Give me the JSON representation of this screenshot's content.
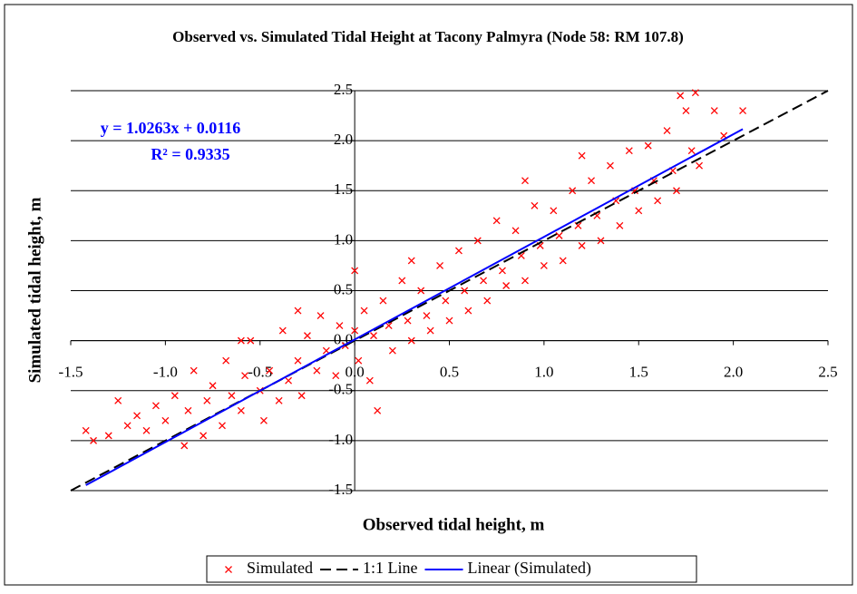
{
  "chart_data": {
    "type": "scatter",
    "title": "Observed vs. Simulated Tidal Height at Tacony Palmyra (Node 58: RM 107.8)",
    "x_label": "Observed tidal height, m",
    "y_label": "Simulated tidal height, m",
    "annotations": [
      "y = 1.0263x + 0.0116",
      "R² = 0.9335"
    ],
    "xlim": [
      -1.5,
      2.5
    ],
    "ylim": [
      -1.5,
      2.5
    ],
    "xticks": [
      -1.5,
      {
        "value": -1,
        "label": "-1.0"
      },
      -0.5,
      {
        "value": 0,
        "label": "0.0"
      },
      0.5,
      {
        "value": 1,
        "label": "1.0"
      },
      1.5,
      {
        "value": 2,
        "label": "2.0"
      },
      2.5
    ],
    "yticks": [
      -1.5,
      {
        "value": -1,
        "label": "-1.0"
      },
      -0.5,
      {
        "value": 0,
        "label": "0.0"
      },
      0.5,
      {
        "value": 1,
        "label": "1.0"
      },
      1.5,
      {
        "value": 2,
        "label": "2.0"
      },
      2.5
    ],
    "grid": true,
    "legend": "bottom",
    "series": [
      {
        "name": "Simulated",
        "color": "#ff0000",
        "kind": "points",
        "x": [
          -1.42,
          -1.38,
          -1.3,
          -1.25,
          -1.2,
          -1.15,
          -1.1,
          -1.05,
          -1.0,
          -0.95,
          -0.9,
          -0.88,
          -0.85,
          -0.8,
          -0.78,
          -0.75,
          -0.7,
          -0.68,
          -0.65,
          -0.6,
          -0.58,
          -0.55,
          -0.5,
          -0.48,
          -0.45,
          -0.4,
          -0.38,
          -0.35,
          -0.3,
          -0.28,
          -0.25,
          -0.2,
          -0.18,
          -0.15,
          -0.1,
          -0.08,
          -0.05,
          0.0,
          0.0,
          0.02,
          0.05,
          0.08,
          0.1,
          0.12,
          0.15,
          0.18,
          0.2,
          0.25,
          0.28,
          0.3,
          0.35,
          0.38,
          0.4,
          0.45,
          0.48,
          0.5,
          0.55,
          0.58,
          0.6,
          0.65,
          0.68,
          0.7,
          0.75,
          0.78,
          0.8,
          0.85,
          0.88,
          0.9,
          0.95,
          0.98,
          1.0,
          1.05,
          1.08,
          1.1,
          1.15,
          1.18,
          1.2,
          1.25,
          1.28,
          1.3,
          1.35,
          1.38,
          1.4,
          1.45,
          1.48,
          1.5,
          1.55,
          1.58,
          1.6,
          1.65,
          1.68,
          1.7,
          1.75,
          1.78,
          1.8,
          1.82,
          1.9,
          1.95,
          2.05,
          1.72,
          0.3,
          -0.3,
          -0.6,
          0.9,
          1.2
        ],
        "values": [
          -0.9,
          -1.0,
          -0.95,
          -0.6,
          -0.85,
          -0.75,
          -0.9,
          -0.65,
          -0.8,
          -0.55,
          -1.05,
          -0.7,
          -0.3,
          -0.95,
          -0.6,
          -0.45,
          -0.85,
          -0.2,
          -0.55,
          -0.7,
          -0.35,
          0.0,
          -0.5,
          -0.8,
          -0.3,
          -0.6,
          0.1,
          -0.4,
          -0.2,
          -0.55,
          0.05,
          -0.3,
          0.25,
          -0.1,
          -0.35,
          0.15,
          -0.05,
          0.7,
          0.1,
          -0.2,
          0.3,
          -0.4,
          0.05,
          -0.7,
          0.4,
          0.15,
          -0.1,
          0.6,
          0.2,
          0.0,
          0.5,
          0.25,
          0.1,
          0.75,
          0.4,
          0.2,
          0.9,
          0.5,
          0.3,
          1.0,
          0.6,
          0.4,
          1.2,
          0.7,
          0.55,
          1.1,
          0.85,
          0.6,
          1.35,
          0.95,
          0.75,
          1.3,
          1.05,
          0.8,
          1.5,
          1.15,
          0.95,
          1.6,
          1.25,
          1.0,
          1.75,
          1.4,
          1.15,
          1.9,
          1.5,
          1.3,
          1.95,
          1.6,
          1.4,
          2.1,
          1.7,
          1.5,
          2.3,
          1.9,
          2.48,
          1.75,
          2.3,
          2.05,
          2.3,
          2.45,
          0.8,
          0.3,
          0.0,
          1.6,
          1.85
        ]
      },
      {
        "name": "1:1 Line",
        "color": "#000000",
        "kind": "dashed",
        "x": [
          -1.5,
          2.5
        ],
        "values": [
          -1.5,
          2.5
        ]
      },
      {
        "name": "Linear (Simulated)",
        "color": "#0000ff",
        "kind": "solid",
        "x": [
          -1.42,
          2.05
        ],
        "values": [
          -1.4457,
          2.1155
        ]
      }
    ]
  }
}
